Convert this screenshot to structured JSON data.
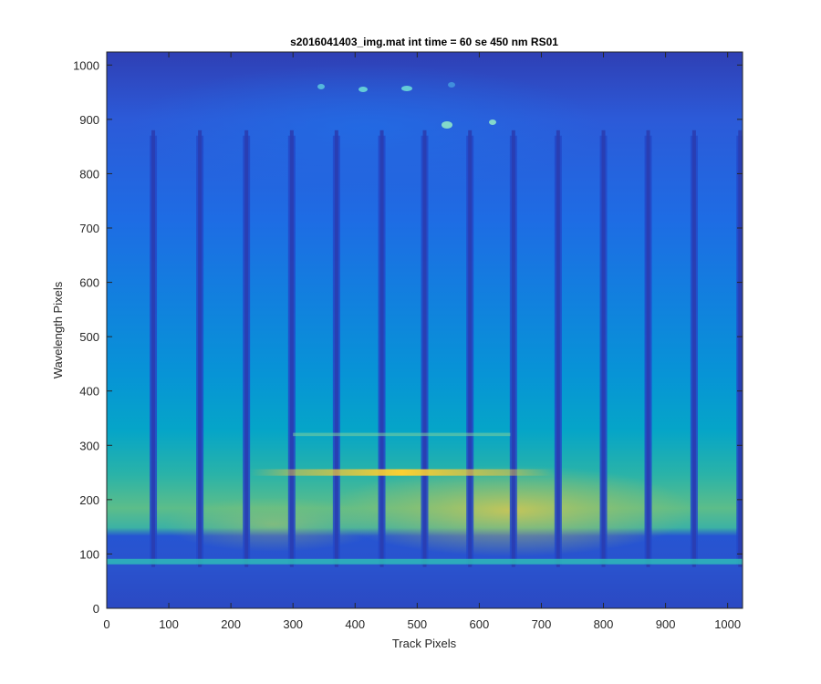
{
  "chart_data": {
    "type": "heatmap",
    "title": "s2016041403_img.mat int time = 60 se  450 nm RS01",
    "xlabel": "Track Pixels",
    "ylabel": "Wavelength Pixels",
    "xlim": [
      0,
      1024
    ],
    "ylim": [
      0,
      1024
    ],
    "xticks": [
      0,
      100,
      200,
      300,
      400,
      500,
      600,
      700,
      800,
      900,
      1000
    ],
    "yticks": [
      0,
      100,
      200,
      300,
      400,
      500,
      600,
      700,
      800,
      900,
      1000
    ],
    "colormap": "parula",
    "grid": false,
    "dark_track_columns": [
      75,
      150,
      225,
      298,
      370,
      443,
      512,
      585,
      655,
      727,
      800,
      872,
      946,
      1020
    ],
    "bright_band_wavelength": 250,
    "secondary_band_wavelength": 320,
    "low_edge_wavelength": 88
  }
}
